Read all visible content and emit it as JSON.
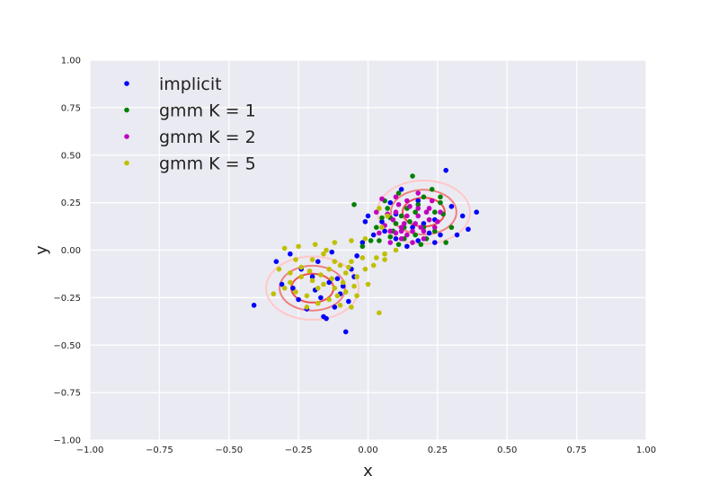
{
  "chart_data": {
    "type": "scatter",
    "xlabel": "x",
    "ylabel": "y",
    "xlim": [
      -1.0,
      1.0
    ],
    "ylim": [
      -1.0,
      1.0
    ],
    "xticks": [
      -1.0,
      -0.75,
      -0.5,
      -0.25,
      0.0,
      0.25,
      0.5,
      0.75,
      1.0
    ],
    "yticks": [
      -1.0,
      -0.75,
      -0.5,
      -0.25,
      0.0,
      0.25,
      0.5,
      0.75,
      1.0
    ],
    "xtick_labels": [
      "−1.00",
      "−0.75",
      "−0.50",
      "−0.25",
      "0.00",
      "0.25",
      "0.50",
      "0.75",
      "1.00"
    ],
    "ytick_labels": [
      "−1.00",
      "−0.75",
      "−0.50",
      "−0.25",
      "0.00",
      "0.25",
      "0.50",
      "0.75",
      "1.00"
    ],
    "grid": true,
    "legend_position": "top-left",
    "background": "#eaeaf2",
    "series": [
      {
        "name": "implicit",
        "color": "#0000ff",
        "points": [
          [
            0.28,
            0.42
          ],
          [
            0.39,
            0.2
          ],
          [
            0.36,
            0.11
          ],
          [
            0.32,
            0.08
          ],
          [
            0.26,
            0.08
          ],
          [
            0.22,
            0.09
          ],
          [
            0.18,
            0.05
          ],
          [
            0.14,
            0.02
          ],
          [
            0.08,
            0.25
          ],
          [
            0.0,
            0.18
          ],
          [
            -0.01,
            0.15
          ],
          [
            0.1,
            0.19
          ],
          [
            0.16,
            0.12
          ],
          [
            0.2,
            0.14
          ],
          [
            0.24,
            0.16
          ],
          [
            0.3,
            0.23
          ],
          [
            0.12,
            0.32
          ],
          [
            0.18,
            0.26
          ],
          [
            0.06,
            0.1
          ],
          [
            0.1,
            0.06
          ],
          [
            0.24,
            0.04
          ],
          [
            0.34,
            0.18
          ],
          [
            0.05,
            0.15
          ],
          [
            -0.41,
            -0.29
          ],
          [
            -0.33,
            -0.06
          ],
          [
            -0.31,
            -0.18
          ],
          [
            -0.27,
            -0.2
          ],
          [
            -0.24,
            -0.1
          ],
          [
            -0.22,
            -0.31
          ],
          [
            -0.2,
            -0.14
          ],
          [
            -0.17,
            -0.25
          ],
          [
            -0.14,
            -0.17
          ],
          [
            -0.12,
            -0.3
          ],
          [
            -0.1,
            -0.23
          ],
          [
            -0.08,
            -0.43
          ],
          [
            -0.06,
            -0.1
          ],
          [
            -0.04,
            -0.03
          ],
          [
            -0.02,
            0.04
          ],
          [
            -0.19,
            -0.21
          ],
          [
            -0.15,
            -0.36
          ],
          [
            -0.11,
            -0.15
          ],
          [
            -0.09,
            -0.19
          ],
          [
            -0.13,
            -0.01
          ],
          [
            -0.07,
            -0.27
          ],
          [
            -0.05,
            -0.14
          ],
          [
            -0.25,
            -0.26
          ],
          [
            -0.18,
            -0.06
          ],
          [
            -0.28,
            -0.02
          ],
          [
            -0.16,
            -0.35
          ],
          [
            0.02,
            0.08
          ]
        ]
      },
      {
        "name": "gmm K = 1",
        "color": "#008000",
        "points": [
          [
            0.16,
            0.39
          ],
          [
            0.23,
            0.32
          ],
          [
            0.26,
            0.28
          ],
          [
            0.11,
            0.3
          ],
          [
            0.07,
            0.22
          ],
          [
            0.08,
            0.07
          ],
          [
            0.13,
            0.06
          ],
          [
            0.17,
            0.08
          ],
          [
            0.2,
            0.12
          ],
          [
            0.22,
            0.16
          ],
          [
            0.24,
            0.2
          ],
          [
            0.1,
            0.14
          ],
          [
            0.05,
            0.17
          ],
          [
            0.03,
            0.12
          ],
          [
            0.01,
            0.05
          ],
          [
            -0.02,
            0.02
          ],
          [
            0.28,
            0.04
          ],
          [
            0.3,
            0.12
          ],
          [
            0.14,
            0.22
          ],
          [
            0.18,
            0.24
          ],
          [
            0.12,
            0.18
          ],
          [
            0.2,
            0.28
          ],
          [
            0.06,
            0.26
          ],
          [
            -0.05,
            0.24
          ],
          [
            0.09,
            0.1
          ],
          [
            0.15,
            0.15
          ],
          [
            0.27,
            0.19
          ],
          [
            0.04,
            0.05
          ],
          [
            0.19,
            0.03
          ],
          [
            0.24,
            0.1
          ],
          [
            0.11,
            0.03
          ],
          [
            0.26,
            0.25
          ],
          [
            0.08,
            0.17
          ],
          [
            0.17,
            0.2
          ],
          [
            0.13,
            0.12
          ],
          [
            0.21,
            0.06
          ]
        ]
      },
      {
        "name": "gmm K = 2",
        "color": "#bf00bf",
        "points": [
          [
            0.05,
            0.27
          ],
          [
            0.1,
            0.28
          ],
          [
            0.14,
            0.26
          ],
          [
            0.18,
            0.3
          ],
          [
            0.22,
            0.22
          ],
          [
            0.26,
            0.2
          ],
          [
            0.06,
            0.13
          ],
          [
            0.08,
            0.1
          ],
          [
            0.12,
            0.1
          ],
          [
            0.16,
            0.1
          ],
          [
            0.2,
            0.1
          ],
          [
            0.24,
            0.12
          ],
          [
            0.1,
            0.2
          ],
          [
            0.14,
            0.18
          ],
          [
            0.18,
            0.18
          ],
          [
            0.22,
            0.16
          ],
          [
            0.04,
            0.09
          ],
          [
            0.08,
            0.04
          ],
          [
            0.12,
            0.06
          ],
          [
            0.16,
            0.04
          ],
          [
            0.2,
            0.06
          ],
          [
            0.13,
            0.14
          ],
          [
            0.17,
            0.14
          ],
          [
            0.09,
            0.16
          ],
          [
            0.21,
            0.2
          ],
          [
            0.15,
            0.23
          ],
          [
            0.11,
            0.24
          ],
          [
            0.19,
            0.12
          ],
          [
            0.07,
            0.19
          ],
          [
            0.25,
            0.15
          ],
          [
            0.03,
            0.2
          ],
          [
            0.23,
            0.26
          ],
          [
            0.14,
            0.08
          ],
          [
            0.18,
            0.22
          ],
          [
            0.12,
            0.12
          ],
          [
            0.1,
            0.09
          ]
        ]
      },
      {
        "name": "gmm K = 5",
        "color": "#bfbf00",
        "points": [
          [
            -0.3,
            0.01
          ],
          [
            -0.25,
            0.02
          ],
          [
            -0.19,
            0.03
          ],
          [
            -0.12,
            0.04
          ],
          [
            -0.06,
            0.05
          ],
          [
            -0.01,
            0.06
          ],
          [
            -0.32,
            -0.1
          ],
          [
            -0.28,
            -0.12
          ],
          [
            -0.24,
            -0.14
          ],
          [
            -0.2,
            -0.16
          ],
          [
            -0.16,
            -0.18
          ],
          [
            -0.12,
            -0.2
          ],
          [
            -0.08,
            -0.22
          ],
          [
            -0.04,
            -0.24
          ],
          [
            -0.3,
            -0.2
          ],
          [
            -0.26,
            -0.22
          ],
          [
            -0.22,
            -0.24
          ],
          [
            -0.18,
            -0.2
          ],
          [
            -0.14,
            -0.1
          ],
          [
            -0.1,
            -0.08
          ],
          [
            -0.06,
            -0.06
          ],
          [
            -0.02,
            -0.04
          ],
          [
            0.02,
            -0.08
          ],
          [
            -0.2,
            -0.05
          ],
          [
            -0.16,
            -0.02
          ],
          [
            -0.12,
            -0.06
          ],
          [
            -0.08,
            -0.12
          ],
          [
            -0.04,
            -0.14
          ],
          [
            0.0,
            -0.18
          ],
          [
            -0.28,
            -0.17
          ],
          [
            -0.24,
            -0.09
          ],
          [
            -0.21,
            -0.11
          ],
          [
            -0.17,
            -0.13
          ],
          [
            -0.13,
            -0.15
          ],
          [
            -0.09,
            -0.17
          ],
          [
            -0.05,
            -0.19
          ],
          [
            -0.01,
            -0.1
          ],
          [
            0.03,
            -0.04
          ],
          [
            0.06,
            -0.02
          ],
          [
            0.05,
            0.12
          ],
          [
            0.07,
            0.18
          ],
          [
            0.04,
            0.22
          ],
          [
            0.1,
            0.0
          ],
          [
            -0.22,
            -0.3
          ],
          [
            -0.18,
            -0.28
          ],
          [
            -0.14,
            -0.26
          ],
          [
            -0.1,
            -0.29
          ],
          [
            0.04,
            -0.33
          ],
          [
            -0.34,
            -0.23
          ],
          [
            -0.06,
            -0.3
          ],
          [
            0.06,
            -0.05
          ],
          [
            -0.15,
            0.0
          ],
          [
            -0.26,
            -0.05
          ],
          [
            -0.11,
            -0.24
          ],
          [
            -0.07,
            -0.09
          ]
        ]
      }
    ],
    "contours": {
      "centers": [
        [
          0.2,
          0.2
        ],
        [
          -0.2,
          -0.2
        ]
      ],
      "levels": [
        {
          "level": 0.25,
          "color": "#ffc8c8",
          "width": 2
        },
        {
          "level": 0.5,
          "color": "#f08080",
          "width": 2
        },
        {
          "level": 0.75,
          "color": "#f05050",
          "width": 2
        },
        {
          "level": 1.0,
          "color": "#ee1111",
          "width": 2
        }
      ]
    }
  }
}
